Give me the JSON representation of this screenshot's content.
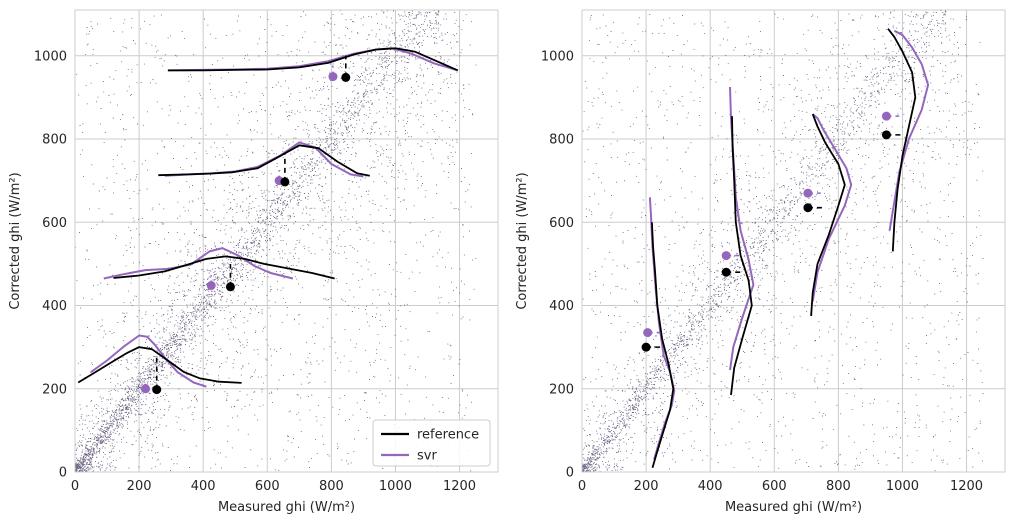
{
  "chart_data": [
    {
      "type": "scatter",
      "panel": "left",
      "title": "",
      "xlabel": "Measured ghi (W/m²)",
      "ylabel": "Corrected ghi (W/m²)",
      "xlim": [
        0,
        1320
      ],
      "ylim": [
        0,
        1110
      ],
      "xticks": [
        0,
        200,
        400,
        600,
        800,
        1000,
        1200
      ],
      "yticks": [
        0,
        200,
        400,
        600,
        800,
        1000
      ],
      "grid": true,
      "legend": {
        "placement": "lower-right",
        "entries": [
          {
            "label": "reference",
            "color": "#000000"
          },
          {
            "label": "svr",
            "color": "#9467bd"
          }
        ]
      },
      "density_orientation": "horizontal",
      "bins": [
        {
          "center": 200,
          "ref_mean": [
            255,
            198
          ],
          "svr_mean": [
            220,
            200
          ],
          "ref_curve": [
            [
              10,
              215
            ],
            [
              60,
              238
            ],
            [
              110,
              262
            ],
            [
              160,
              285
            ],
            [
              200,
              300
            ],
            [
              240,
              295
            ],
            [
              290,
              268
            ],
            [
              340,
              240
            ],
            [
              390,
              225
            ],
            [
              450,
              217
            ],
            [
              520,
              214
            ]
          ],
          "svr_curve": [
            [
              50,
              240
            ],
            [
              100,
              268
            ],
            [
              150,
              300
            ],
            [
              200,
              328
            ],
            [
              225,
              325
            ],
            [
              250,
              305
            ],
            [
              285,
              270
            ],
            [
              320,
              240
            ],
            [
              370,
              215
            ],
            [
              410,
              205
            ]
          ]
        },
        {
          "center": 450,
          "ref_mean": [
            485,
            445
          ],
          "svr_mean": [
            425,
            448
          ],
          "ref_curve": [
            [
              120,
              466
            ],
            [
              200,
              472
            ],
            [
              280,
              482
            ],
            [
              350,
              498
            ],
            [
              410,
              512
            ],
            [
              470,
              518
            ],
            [
              530,
              512
            ],
            [
              590,
              500
            ],
            [
              660,
              490
            ],
            [
              740,
              478
            ],
            [
              810,
              465
            ]
          ],
          "svr_curve": [
            [
              90,
              465
            ],
            [
              150,
              475
            ],
            [
              220,
              485
            ],
            [
              290,
              488
            ],
            [
              360,
              498
            ],
            [
              420,
              530
            ],
            [
              460,
              538
            ],
            [
              510,
              520
            ],
            [
              560,
              495
            ],
            [
              610,
              478
            ],
            [
              680,
              465
            ]
          ]
        },
        {
          "center": 700,
          "ref_mean": [
            655,
            697
          ],
          "svr_mean": [
            637,
            700
          ],
          "ref_curve": [
            [
              260,
              713
            ],
            [
              350,
              715
            ],
            [
              420,
              717
            ],
            [
              490,
              720
            ],
            [
              570,
              730
            ],
            [
              630,
              755
            ],
            [
              700,
              785
            ],
            [
              760,
              778
            ],
            [
              820,
              745
            ],
            [
              880,
              718
            ],
            [
              920,
              712
            ]
          ],
          "svr_curve": [
            [
              280,
              712
            ],
            [
              360,
              715
            ],
            [
              430,
              718
            ],
            [
              500,
              722
            ],
            [
              570,
              733
            ],
            [
              640,
              760
            ],
            [
              700,
              792
            ],
            [
              750,
              780
            ],
            [
              800,
              740
            ],
            [
              860,
              715
            ],
            [
              900,
              710
            ]
          ]
        },
        {
          "center": 950,
          "ref_mean": [
            845,
            948
          ],
          "svr_mean": [
            805,
            950
          ],
          "ref_curve": [
            [
              290,
              965
            ],
            [
              400,
              965
            ],
            [
              500,
              966
            ],
            [
              600,
              967
            ],
            [
              700,
              972
            ],
            [
              790,
              983
            ],
            [
              870,
              1003
            ],
            [
              940,
              1015
            ],
            [
              1000,
              1018
            ],
            [
              1060,
              1010
            ],
            [
              1120,
              990
            ],
            [
              1195,
              965
            ]
          ],
          "svr_curve": [
            [
              290,
              965
            ],
            [
              400,
              966
            ],
            [
              500,
              967
            ],
            [
              600,
              969
            ],
            [
              700,
              975
            ],
            [
              790,
              987
            ],
            [
              870,
              1005
            ],
            [
              940,
              1015
            ],
            [
              990,
              1018
            ],
            [
              1050,
              1005
            ],
            [
              1120,
              982
            ],
            [
              1190,
              966
            ]
          ]
        }
      ]
    },
    {
      "type": "scatter",
      "panel": "right",
      "title": "",
      "xlabel": "Measured ghi (W/m²)",
      "ylabel": "Corrected ghi (W/m²)",
      "xlim": [
        0,
        1320
      ],
      "ylim": [
        0,
        1110
      ],
      "xticks": [
        0,
        200,
        400,
        600,
        800,
        1000,
        1200
      ],
      "yticks": [
        0,
        200,
        400,
        600,
        800,
        1000
      ],
      "grid": true,
      "density_orientation": "vertical",
      "bins": [
        {
          "center": 200,
          "ref_mean": [
            200,
            300
          ],
          "svr_mean": [
            205,
            335
          ],
          "ref_curve": [
            [
              220,
              10
            ],
            [
              235,
              50
            ],
            [
              255,
              100
            ],
            [
              275,
              150
            ],
            [
              285,
              200
            ],
            [
              270,
              260
            ],
            [
              250,
              320
            ],
            [
              235,
              400
            ],
            [
              228,
              480
            ],
            [
              222,
              540
            ],
            [
              218,
              600
            ]
          ],
          "svr_curve": [
            [
              225,
              30
            ],
            [
              240,
              70
            ],
            [
              260,
              120
            ],
            [
              280,
              160
            ],
            [
              288,
              195
            ],
            [
              275,
              240
            ],
            [
              255,
              280
            ],
            [
              240,
              360
            ],
            [
              230,
              440
            ],
            [
              220,
              540
            ],
            [
              215,
              620
            ],
            [
              212,
              660
            ]
          ]
        },
        {
          "center": 450,
          "ref_mean": [
            450,
            480
          ],
          "svr_mean": [
            450,
            520
          ],
          "ref_curve": [
            [
              465,
              185
            ],
            [
              475,
              250
            ],
            [
              500,
              320
            ],
            [
              530,
              400
            ],
            [
              520,
              460
            ],
            [
              495,
              520
            ],
            [
              480,
              600
            ],
            [
              475,
              700
            ],
            [
              470,
              780
            ],
            [
              468,
              855
            ]
          ],
          "svr_curve": [
            [
              462,
              245
            ],
            [
              472,
              300
            ],
            [
              500,
              370
            ],
            [
              535,
              450
            ],
            [
              520,
              510
            ],
            [
              495,
              580
            ],
            [
              480,
              660
            ],
            [
              472,
              760
            ],
            [
              465,
              850
            ],
            [
              462,
              925
            ]
          ]
        },
        {
          "center": 700,
          "ref_mean": [
            705,
            635
          ],
          "svr_mean": [
            705,
            670
          ],
          "ref_curve": [
            [
              715,
              375
            ],
            [
              720,
              430
            ],
            [
              735,
              500
            ],
            [
              770,
              570
            ],
            [
              800,
              640
            ],
            [
              820,
              690
            ],
            [
              800,
              740
            ],
            [
              760,
              790
            ],
            [
              735,
              830
            ],
            [
              720,
              860
            ]
          ],
          "svr_curve": [
            [
              720,
              410
            ],
            [
              735,
              480
            ],
            [
              770,
              560
            ],
            [
              820,
              640
            ],
            [
              840,
              690
            ],
            [
              825,
              730
            ],
            [
              790,
              775
            ],
            [
              755,
              820
            ],
            [
              735,
              850
            ],
            [
              720,
              860
            ]
          ]
        },
        {
          "center": 950,
          "ref_mean": [
            950,
            810
          ],
          "svr_mean": [
            950,
            855
          ],
          "ref_curve": [
            [
              970,
              530
            ],
            [
              975,
              600
            ],
            [
              985,
              680
            ],
            [
              1000,
              760
            ],
            [
              1020,
              830
            ],
            [
              1040,
              900
            ],
            [
              1030,
              960
            ],
            [
              1000,
              1010
            ],
            [
              975,
              1045
            ],
            [
              955,
              1065
            ]
          ],
          "svr_curve": [
            [
              960,
              580
            ],
            [
              975,
              650
            ],
            [
              990,
              720
            ],
            [
              1020,
              800
            ],
            [
              1060,
              870
            ],
            [
              1080,
              930
            ],
            [
              1060,
              980
            ],
            [
              1030,
              1020
            ],
            [
              1000,
              1050
            ],
            [
              975,
              1060
            ]
          ]
        }
      ]
    }
  ]
}
